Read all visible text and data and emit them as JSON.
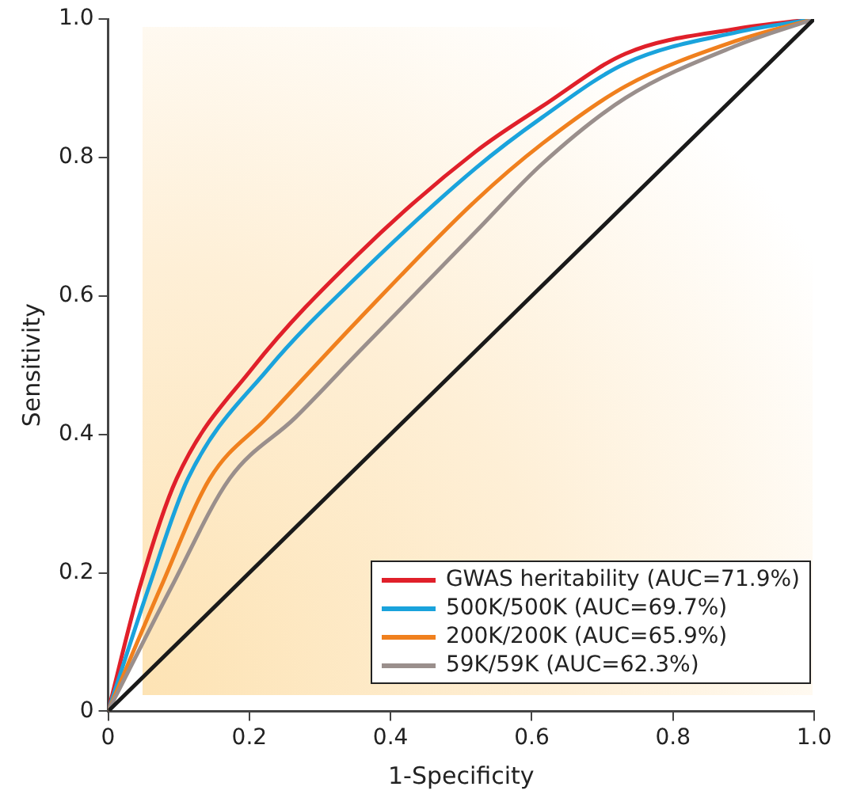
{
  "chart_data": {
    "type": "line",
    "xlabel": "1-Specificity",
    "ylabel": "Sensitivity",
    "xlim": [
      0,
      1
    ],
    "ylim": [
      0,
      1
    ],
    "xticks": [
      0,
      0.2,
      0.4,
      0.6,
      0.8,
      {
        "value": 1,
        "label": "1.0"
      }
    ],
    "yticks": [
      0,
      0.2,
      0.4,
      0.6,
      0.8,
      {
        "value": 1,
        "label": "1.0"
      }
    ],
    "grid": false,
    "legend": "bottom right",
    "marker": "none",
    "line_style": "solid",
    "series": [
      {
        "name": "GWAS heritability (AUC=71.9%)",
        "color": "#e0202a",
        "x": [
          0,
          0.045,
          0.097,
          0.204,
          0.355,
          0.52,
          0.615,
          0.733,
          0.891,
          1
        ],
        "values": [
          0,
          0.18,
          0.336,
          0.495,
          0.661,
          0.808,
          0.874,
          0.95,
          0.986,
          1
        ]
      },
      {
        "name": "500K/500K (AUC=69.7%)",
        "color": "#1aa3dc",
        "x": [
          0,
          0.058,
          0.113,
          0.227,
          0.355,
          0.52,
          0.615,
          0.733,
          0.891,
          1
        ],
        "values": [
          0,
          0.18,
          0.336,
          0.495,
          0.63,
          0.784,
          0.858,
          0.936,
          0.981,
          1
        ]
      },
      {
        "name": "200K/200K (AUC=65.9%)",
        "color": "#f0801e",
        "x": [
          0,
          0.075,
          0.144,
          0.225,
          0.355,
          0.52,
          0.615,
          0.733,
          0.891,
          1
        ],
        "values": [
          0,
          0.18,
          0.336,
          0.424,
          0.566,
          0.737,
          0.82,
          0.903,
          0.969,
          1
        ]
      },
      {
        "name": "59K/59K (AUC=62.3%)",
        "color": "#9a8f8c",
        "x": [
          0,
          0.09,
          0.172,
          0.265,
          0.355,
          0.52,
          0.615,
          0.733,
          0.891,
          1
        ],
        "values": [
          0,
          0.18,
          0.336,
          0.424,
          0.519,
          0.692,
          0.791,
          0.886,
          0.962,
          1
        ]
      },
      {
        "color": "#1a1a1a",
        "x": [
          0,
          1
        ],
        "values": [
          0,
          1
        ]
      }
    ]
  }
}
